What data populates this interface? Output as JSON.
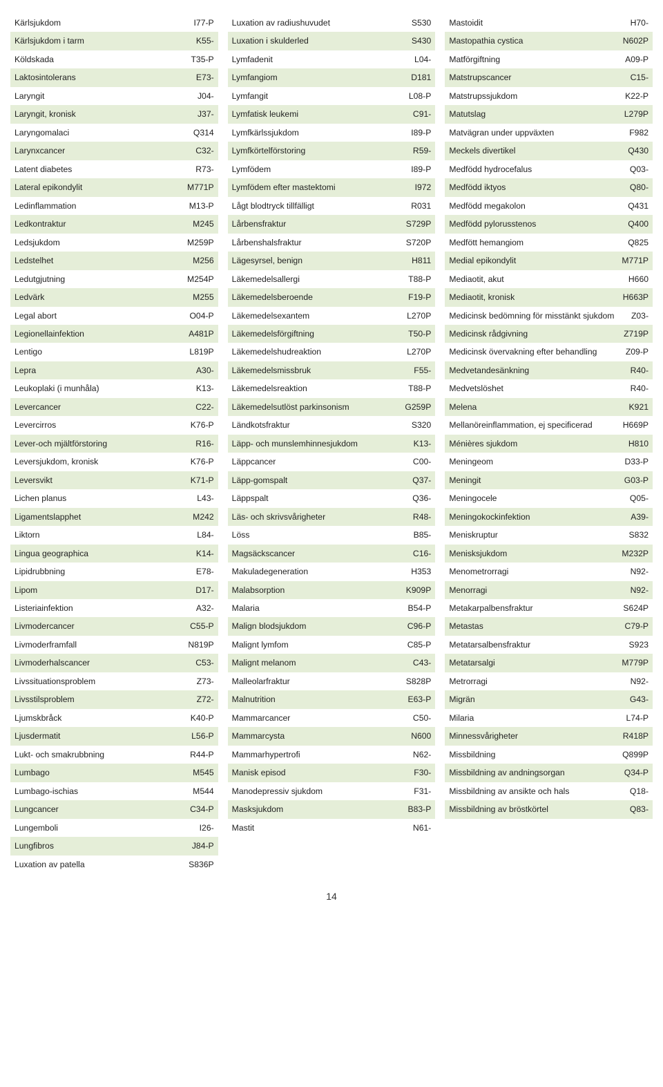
{
  "col1": [
    {
      "t": "Kärlsjukdom",
      "c": "I77-P"
    },
    {
      "t": "Kärlsjukdom i tarm",
      "c": "K55-"
    },
    {
      "t": "Köldskada",
      "c": "T35-P"
    },
    {
      "t": "Laktosintolerans",
      "c": "E73-"
    },
    {
      "t": "Laryngit",
      "c": "J04-"
    },
    {
      "t": "Laryngit, kronisk",
      "c": "J37-"
    },
    {
      "t": "Laryngomalaci",
      "c": "Q314"
    },
    {
      "t": "Larynxcancer",
      "c": "C32-"
    },
    {
      "t": "Latent diabetes",
      "c": "R73-"
    },
    {
      "t": "Lateral epikondylit",
      "c": "M771P"
    },
    {
      "t": "Ledinflammation",
      "c": "M13-P"
    },
    {
      "t": "Ledkontraktur",
      "c": "M245"
    },
    {
      "t": "Ledsjukdom",
      "c": "M259P"
    },
    {
      "t": "Ledstelhet",
      "c": "M256"
    },
    {
      "t": "Ledutgjutning",
      "c": "M254P"
    },
    {
      "t": "Ledvärk",
      "c": "M255"
    },
    {
      "t": "Legal abort",
      "c": "O04-P"
    },
    {
      "t": "Legionellainfektion",
      "c": "A481P"
    },
    {
      "t": "Lentigo",
      "c": "L819P"
    },
    {
      "t": "Lepra",
      "c": "A30-"
    },
    {
      "t": "Leukoplaki (i munhåla)",
      "c": "K13-"
    },
    {
      "t": "Levercancer",
      "c": "C22-"
    },
    {
      "t": "Levercirros",
      "c": "K76-P"
    },
    {
      "t": "Lever-och mjältförstoring",
      "c": "R16-"
    },
    {
      "t": "Leversjukdom, kronisk",
      "c": "K76-P"
    },
    {
      "t": "Leversvikt",
      "c": "K71-P"
    },
    {
      "t": "Lichen planus",
      "c": "L43-"
    },
    {
      "t": "Ligamentslapphet",
      "c": "M242"
    },
    {
      "t": "Liktorn",
      "c": "L84-"
    },
    {
      "t": "Lingua geographica",
      "c": "K14-"
    },
    {
      "t": "Lipidrubbning",
      "c": "E78-"
    },
    {
      "t": "Lipom",
      "c": "D17-"
    },
    {
      "t": "Listeriainfektion",
      "c": "A32-"
    },
    {
      "t": "Livmodercancer",
      "c": "C55-P"
    },
    {
      "t": "Livmoderframfall",
      "c": "N819P"
    },
    {
      "t": "Livmoderhalscancer",
      "c": "C53-"
    },
    {
      "t": "Livssituationsproblem",
      "c": "Z73-"
    },
    {
      "t": "Livsstilsproblem",
      "c": "Z72-"
    },
    {
      "t": "Ljumskbråck",
      "c": "K40-P"
    },
    {
      "t": "Ljusdermatit",
      "c": "L56-P"
    },
    {
      "t": "Lukt- och smakrubbning",
      "c": "R44-P"
    },
    {
      "t": "Lumbago",
      "c": "M545"
    },
    {
      "t": "Lumbago-ischias",
      "c": "M544"
    },
    {
      "t": "Lungcancer",
      "c": "C34-P"
    },
    {
      "t": "Lungemboli",
      "c": "I26-"
    },
    {
      "t": "Lungfibros",
      "c": "J84-P"
    },
    {
      "t": "Luxation av patella",
      "c": "S836P"
    }
  ],
  "col2": [
    {
      "t": "Luxation av radiushuvudet",
      "c": "S530"
    },
    {
      "t": "Luxation i skulderled",
      "c": "S430"
    },
    {
      "t": "Lymfadenit",
      "c": "L04-"
    },
    {
      "t": "Lymfangiom",
      "c": "D181"
    },
    {
      "t": "Lymfangit",
      "c": "L08-P"
    },
    {
      "t": "Lymfatisk leukemi",
      "c": "C91-"
    },
    {
      "t": "Lymfkärlssjukdom",
      "c": "I89-P"
    },
    {
      "t": "Lymfkörtelförstoring",
      "c": "R59-"
    },
    {
      "t": "Lymfödem",
      "c": "I89-P"
    },
    {
      "t": "Lymfödem efter mastektomi",
      "c": "I972"
    },
    {
      "t": "Lågt blodtryck tillfälligt",
      "c": "R031"
    },
    {
      "t": "Lårbensfraktur",
      "c": "S729P"
    },
    {
      "t": "Lårbenshalsfraktur",
      "c": "S720P"
    },
    {
      "t": "Lägesyrsel, benign",
      "c": "H811"
    },
    {
      "t": "Läkemedelsallergi",
      "c": "T88-P"
    },
    {
      "t": "Läkemedelsberoende",
      "c": "F19-P"
    },
    {
      "t": "Läkemedelsexantem",
      "c": "L270P"
    },
    {
      "t": "Läkemedelsförgiftning",
      "c": "T50-P"
    },
    {
      "t": "Läkemedelshudreaktion",
      "c": "L270P"
    },
    {
      "t": "Läkemedelsmissbruk",
      "c": "F55-"
    },
    {
      "t": "Läkemedelsreaktion",
      "c": "T88-P"
    },
    {
      "t": "Läkemedelsutlöst parkinsonism",
      "c": "G259P"
    },
    {
      "t": "Ländkotsfraktur",
      "c": "S320"
    },
    {
      "t": "Läpp- och munslemhinnesjukdom",
      "c": "K13-"
    },
    {
      "t": "Läppcancer",
      "c": "C00-"
    },
    {
      "t": "Läpp-gomspalt",
      "c": "Q37-"
    },
    {
      "t": "Läppspalt",
      "c": "Q36-"
    },
    {
      "t": "Läs- och skrivsvårigheter",
      "c": "R48-"
    },
    {
      "t": "Löss",
      "c": "B85-"
    },
    {
      "t": "Magsäckscancer",
      "c": "C16-"
    },
    {
      "t": "Makuladegeneration",
      "c": "H353"
    },
    {
      "t": "Malabsorption",
      "c": "K909P"
    },
    {
      "t": "Malaria",
      "c": "B54-P"
    },
    {
      "t": "Malign blodsjukdom",
      "c": "C96-P"
    },
    {
      "t": "Malignt lymfom",
      "c": "C85-P"
    },
    {
      "t": "Malignt melanom",
      "c": "C43-"
    },
    {
      "t": "Malleolarfraktur",
      "c": "S828P"
    },
    {
      "t": "Malnutrition",
      "c": "E63-P"
    },
    {
      "t": "Mammarcancer",
      "c": "C50-"
    },
    {
      "t": "Mammarcysta",
      "c": "N600"
    },
    {
      "t": "Mammarhypertrofi",
      "c": "N62-"
    },
    {
      "t": "Manisk episod",
      "c": "F30-"
    },
    {
      "t": "Manodepressiv sjukdom",
      "c": "F31-"
    },
    {
      "t": "Masksjukdom",
      "c": "B83-P"
    },
    {
      "t": "Mastit",
      "c": "N61-"
    }
  ],
  "col3": [
    {
      "t": "Mastoidit",
      "c": "H70-"
    },
    {
      "t": "Mastopathia cystica",
      "c": "N602P"
    },
    {
      "t": "Matförgiftning",
      "c": "A09-P"
    },
    {
      "t": "Matstrupscancer",
      "c": "C15-"
    },
    {
      "t": "Matstrupssjukdom",
      "c": "K22-P"
    },
    {
      "t": "Matutslag",
      "c": "L279P"
    },
    {
      "t": "Matvägran under uppväxten",
      "c": "F982"
    },
    {
      "t": "Meckels divertikel",
      "c": "Q430"
    },
    {
      "t": "Medfödd hydrocefalus",
      "c": "Q03-"
    },
    {
      "t": "Medfödd iktyos",
      "c": "Q80-"
    },
    {
      "t": "Medfödd megakolon",
      "c": "Q431"
    },
    {
      "t": "Medfödd pylorusstenos",
      "c": "Q400"
    },
    {
      "t": "Medfött hemangiom",
      "c": "Q825"
    },
    {
      "t": "Medial epikondylit",
      "c": "M771P"
    },
    {
      "t": "Mediaotit, akut",
      "c": "H660"
    },
    {
      "t": "Mediaotit, kronisk",
      "c": "H663P"
    },
    {
      "t": "Medicinsk bedömning för misstänkt sjukdom",
      "c": "Z03-"
    },
    {
      "t": "Medicinsk rådgivning",
      "c": "Z719P"
    },
    {
      "t": "Medicinsk övervakning efter behandling",
      "c": "Z09-P"
    },
    {
      "t": "Medvetandesänkning",
      "c": "R40-"
    },
    {
      "t": "Medvetslöshet",
      "c": "R40-"
    },
    {
      "t": "Melena",
      "c": "K921"
    },
    {
      "t": "Mellanöreinflammation, ej specificerad",
      "c": "H669P"
    },
    {
      "t": "Ménières sjukdom",
      "c": "H810"
    },
    {
      "t": "Meningeom",
      "c": "D33-P"
    },
    {
      "t": "Meningit",
      "c": "G03-P"
    },
    {
      "t": "Meningocele",
      "c": "Q05-"
    },
    {
      "t": "Meningokockinfektion",
      "c": "A39-"
    },
    {
      "t": "Meniskruptur",
      "c": "S832"
    },
    {
      "t": "Menisksjukdom",
      "c": "M232P"
    },
    {
      "t": "Menometrorragi",
      "c": "N92-"
    },
    {
      "t": "Menorragi",
      "c": "N92-"
    },
    {
      "t": "Metakarpalbensfraktur",
      "c": "S624P"
    },
    {
      "t": "Metastas",
      "c": "C79-P"
    },
    {
      "t": "Metatarsalbensfraktur",
      "c": "S923"
    },
    {
      "t": "Metatarsalgi",
      "c": "M779P"
    },
    {
      "t": "Metrorragi",
      "c": "N92-"
    },
    {
      "t": "Migrän",
      "c": "G43-"
    },
    {
      "t": "Milaria",
      "c": "L74-P"
    },
    {
      "t": "Minnessvårigheter",
      "c": "R418P"
    },
    {
      "t": "Missbildning",
      "c": "Q899P"
    },
    {
      "t": "Missbildning av andningsorgan",
      "c": "Q34-P"
    },
    {
      "t": "Missbildning av ansikte och hals",
      "c": "Q18-"
    },
    {
      "t": "Missbildning av bröstkörtel",
      "c": "Q83-"
    }
  ],
  "page_number": "14"
}
